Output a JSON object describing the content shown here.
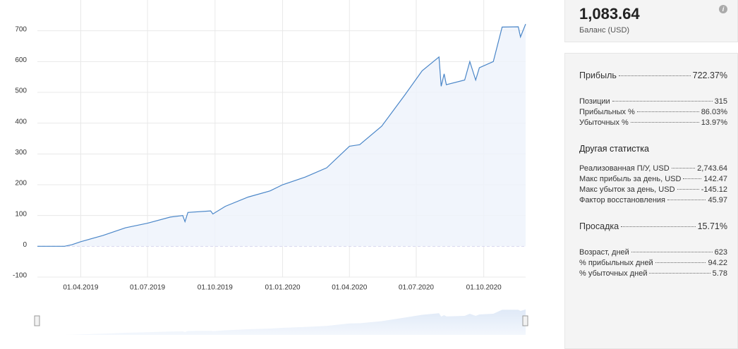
{
  "chart_data": {
    "type": "area",
    "x": [
      "2019-02-01",
      "2019-03-10",
      "2019-03-20",
      "2019-04-01",
      "2019-05-01",
      "2019-06-01",
      "2019-07-01",
      "2019-08-01",
      "2019-08-18",
      "2019-08-21",
      "2019-08-25",
      "2019-09-25",
      "2019-09-28",
      "2019-10-15",
      "2019-11-15",
      "2019-12-15",
      "2020-01-01",
      "2020-02-01",
      "2020-03-01",
      "2020-04-01",
      "2020-04-15",
      "2020-05-15",
      "2020-06-15",
      "2020-07-09",
      "2020-08-01",
      "2020-08-04",
      "2020-08-08",
      "2020-08-11",
      "2020-09-05",
      "2020-09-12",
      "2020-09-20",
      "2020-09-25",
      "2020-10-14",
      "2020-10-26",
      "2020-11-17",
      "2020-11-20",
      "2020-11-27"
    ],
    "values": [
      0,
      0,
      5,
      15,
      35,
      60,
      75,
      95,
      100,
      80,
      110,
      115,
      105,
      130,
      160,
      180,
      200,
      225,
      255,
      325,
      330,
      390,
      490,
      570,
      615,
      520,
      560,
      525,
      540,
      600,
      540,
      580,
      600,
      712,
      713,
      680,
      722
    ],
    "color": "#4a86c8",
    "xlim": [
      "2019-02-01",
      "2020-11-27"
    ],
    "xticks": [
      {
        "value": "2019-04-01",
        "label": "01.04.2019"
      },
      {
        "value": "2019-07-01",
        "label": "01.07.2019"
      },
      {
        "value": "2019-10-01",
        "label": "01.10.2019"
      },
      {
        "value": "2020-01-01",
        "label": "01.01.2020"
      },
      {
        "value": "2020-04-01",
        "label": "01.04.2020"
      },
      {
        "value": "2020-07-01",
        "label": "01.07.2020"
      },
      {
        "value": "2020-10-01",
        "label": "01.10.2020"
      }
    ],
    "ylim": [
      -100,
      800
    ],
    "yticks": [
      -100,
      0,
      100,
      200,
      300,
      400,
      500,
      600,
      700
    ],
    "grid": true
  },
  "balance": {
    "value": "1,083.64",
    "label": "Баланс (USD)"
  },
  "stats": [
    {
      "rows": [
        [
          "Прибыль",
          "722.37%"
        ]
      ]
    },
    {
      "rows": [
        [
          "Позиции",
          "315"
        ],
        [
          "Прибыльных %",
          "86.03%"
        ],
        [
          "Убыточных %",
          "13.97%"
        ]
      ]
    },
    {
      "heading": "Другая статистка",
      "rows": [
        [
          "Реализованная П/У, USD",
          "2,743.64"
        ],
        [
          "Макс прибыль за день, USD",
          "142.47"
        ],
        [
          "Макс убыток за день, USD",
          "-145.12"
        ],
        [
          "Фактор восстановления",
          "45.97"
        ]
      ]
    },
    {
      "rows": [
        [
          "Просадка",
          "15.71%"
        ]
      ]
    },
    {
      "rows": [
        [
          "Возраст, дней",
          "623"
        ],
        [
          "% прибыльных дней",
          "94.22"
        ],
        [
          "% убыточных дней",
          "5.78"
        ]
      ]
    }
  ]
}
